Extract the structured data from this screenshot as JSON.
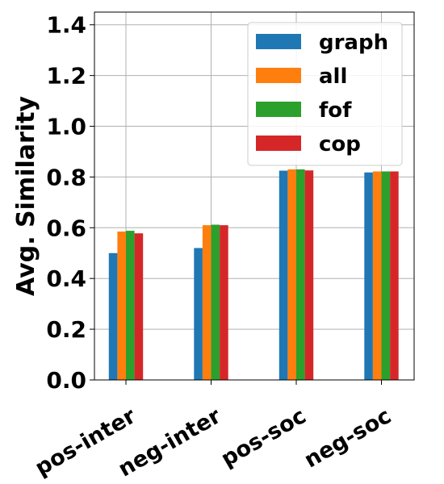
{
  "chart_data": {
    "type": "bar",
    "categories": [
      "pos-inter",
      "neg-inter",
      "pos-soc",
      "neg-soc"
    ],
    "series": [
      {
        "name": "graph",
        "color": "#1f77b4",
        "values": [
          0.5,
          0.52,
          0.825,
          0.818
        ]
      },
      {
        "name": "all",
        "color": "#ff7f0e",
        "values": [
          0.585,
          0.61,
          0.83,
          0.822
        ]
      },
      {
        "name": "fof",
        "color": "#2ca02c",
        "values": [
          0.588,
          0.612,
          0.83,
          0.822
        ]
      },
      {
        "name": "cop",
        "color": "#d62728",
        "values": [
          0.578,
          0.61,
          0.826,
          0.822
        ]
      }
    ],
    "xlabel": "",
    "ylabel": "Avg. Similarity",
    "ylim": [
      0.0,
      1.45
    ],
    "yticks": [
      "0.0",
      "0.2",
      "0.4",
      "0.6",
      "0.8",
      "1.0",
      "1.2",
      "1.4"
    ],
    "grid": true,
    "legend_position": "upper-right"
  }
}
